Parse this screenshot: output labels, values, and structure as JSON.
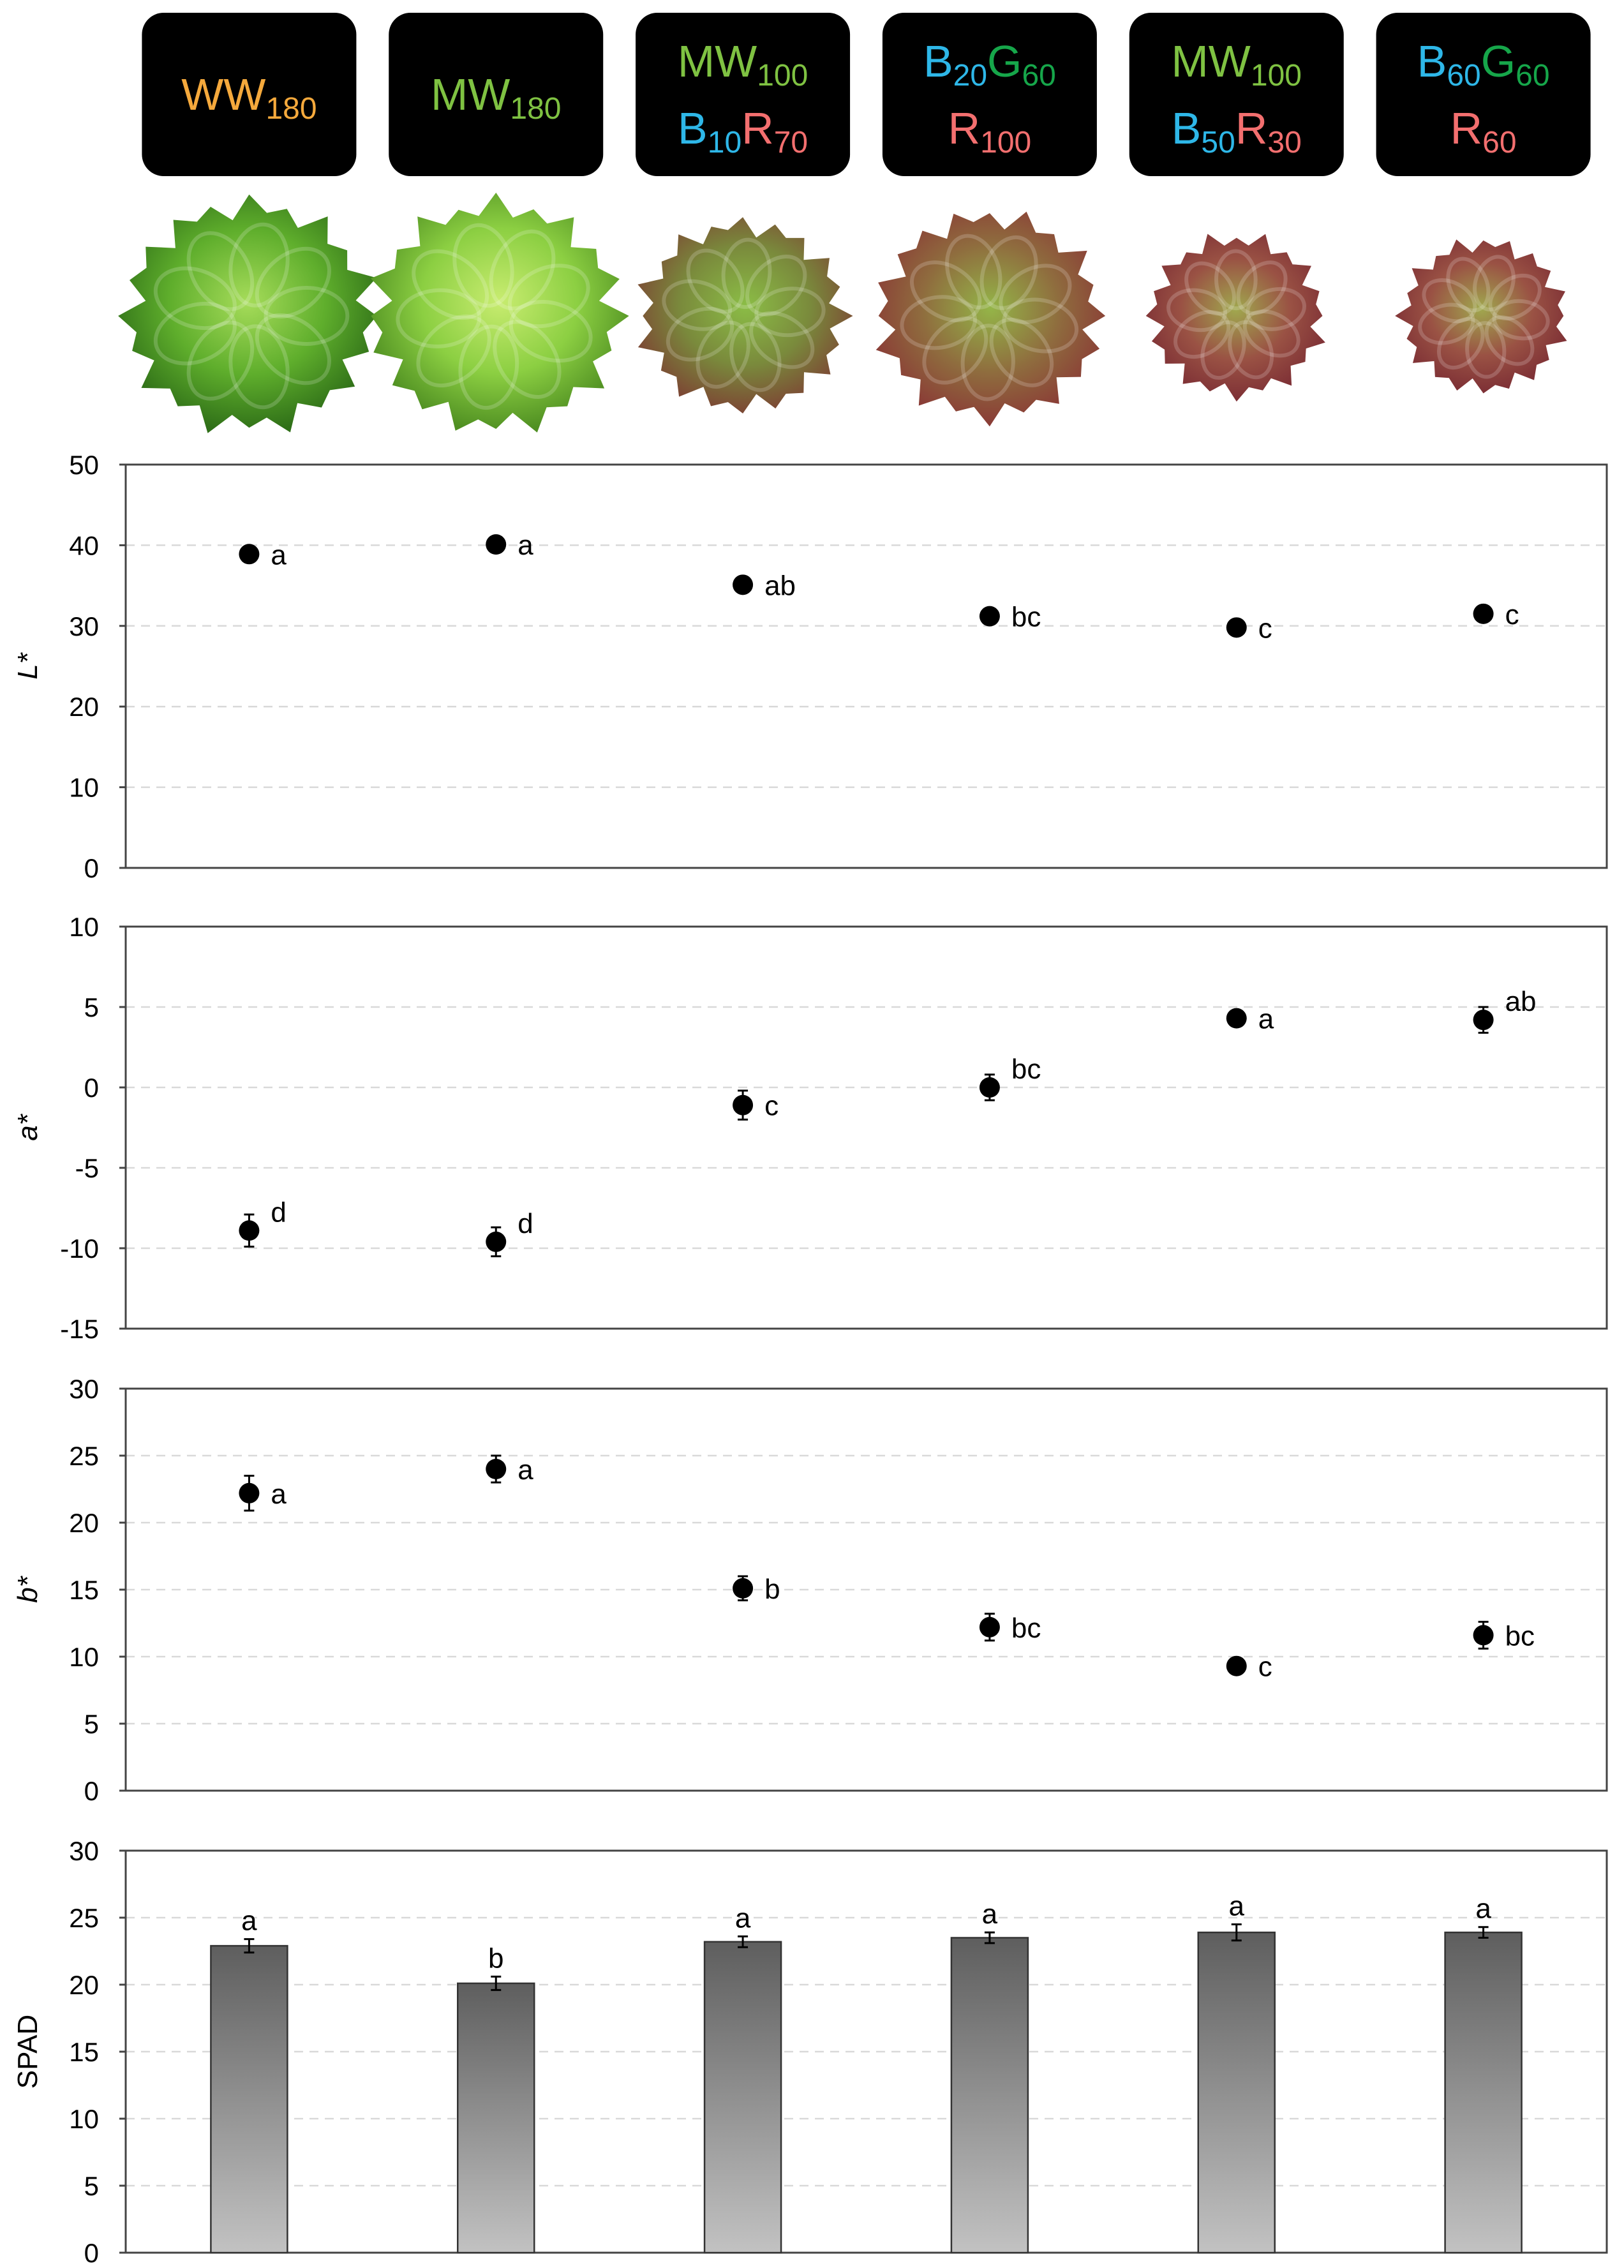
{
  "treatments": [
    {
      "line1": [
        {
          "text": "WW",
          "sub": "180",
          "color": "#f5a93c"
        }
      ],
      "line2": []
    },
    {
      "line1": [
        {
          "text": "MW",
          "sub": "180",
          "color": "#7fc242"
        }
      ],
      "line2": []
    },
    {
      "line1": [
        {
          "text": "MW",
          "sub": "100",
          "color": "#7fc242"
        }
      ],
      "line2": [
        {
          "text": "B",
          "sub": "10",
          "color": "#2eb7e8"
        },
        {
          "text": "R",
          "sub": "70",
          "color": "#f36f6f"
        }
      ]
    },
    {
      "line1": [
        {
          "text": "B",
          "sub": "20",
          "color": "#2eb7e8"
        },
        {
          "text": "G",
          "sub": "60",
          "color": "#16a64a"
        }
      ],
      "line2": [
        {
          "text": "R",
          "sub": "100",
          "color": "#f36f6f"
        }
      ]
    },
    {
      "line1": [
        {
          "text": "MW",
          "sub": "100",
          "color": "#7fc242"
        }
      ],
      "line2": [
        {
          "text": "B",
          "sub": "50",
          "color": "#2eb7e8"
        },
        {
          "text": "R",
          "sub": "30",
          "color": "#f36f6f"
        }
      ]
    },
    {
      "line1": [
        {
          "text": "B",
          "sub": "60",
          "color": "#2eb7e8"
        },
        {
          "text": "G",
          "sub": "60",
          "color": "#16a64a"
        }
      ],
      "line2": [
        {
          "text": "R",
          "sub": "60",
          "color": "#f36f6f"
        }
      ]
    }
  ],
  "lettuce_photos": [
    {
      "tone": "green"
    },
    {
      "tone": "lightgreen"
    },
    {
      "tone": "mixed"
    },
    {
      "tone": "mixed-red"
    },
    {
      "tone": "red"
    },
    {
      "tone": "red"
    }
  ],
  "colors": {
    "badge_bg": "#000000",
    "marker": "#000000",
    "bar_top": "#5e5e5e",
    "bar_bottom": "#c2c2c2",
    "grid": "#d9d9d9"
  },
  "chart_data": [
    {
      "type": "scatter",
      "ylabel": "L*",
      "ylim": [
        0,
        50
      ],
      "yticks": [
        0,
        10,
        20,
        30,
        40,
        50
      ],
      "grid": true,
      "values": [
        38.9,
        40.1,
        35.1,
        31.2,
        29.8,
        31.5
      ],
      "errors": [
        0.4,
        0.5,
        0.5,
        0.4,
        0.4,
        0.5
      ],
      "letters": [
        "a",
        "a",
        "ab",
        "bc",
        "c",
        "c"
      ]
    },
    {
      "type": "scatter",
      "ylabel": "a*",
      "ylim": [
        -15,
        10
      ],
      "yticks": [
        -15,
        -10,
        -5,
        0,
        5,
        10
      ],
      "grid": true,
      "values": [
        -8.9,
        -9.6,
        -1.1,
        0.0,
        4.3,
        4.2
      ],
      "errors": [
        1.0,
        0.9,
        0.9,
        0.8,
        0.4,
        0.8
      ],
      "letters": [
        "d",
        "d",
        "c",
        "bc",
        "a",
        "ab"
      ]
    },
    {
      "type": "scatter",
      "ylabel": "b*",
      "ylim": [
        0,
        30
      ],
      "yticks": [
        0,
        5,
        10,
        15,
        20,
        25,
        30
      ],
      "grid": true,
      "values": [
        22.2,
        24.0,
        15.1,
        12.2,
        9.3,
        11.6
      ],
      "errors": [
        1.3,
        1.0,
        0.9,
        1.0,
        0.4,
        1.0
      ],
      "letters": [
        "a",
        "a",
        "b",
        "bc",
        "c",
        "bc"
      ]
    },
    {
      "type": "bar",
      "ylabel": "SPAD",
      "ylim": [
        0,
        30
      ],
      "yticks": [
        0,
        5,
        10,
        15,
        20,
        25,
        30
      ],
      "grid": true,
      "values": [
        22.9,
        20.1,
        23.2,
        23.5,
        23.9,
        23.9
      ],
      "errors": [
        0.5,
        0.5,
        0.4,
        0.4,
        0.6,
        0.4
      ],
      "letters": [
        "a",
        "b",
        "a",
        "a",
        "a",
        "a"
      ]
    }
  ]
}
